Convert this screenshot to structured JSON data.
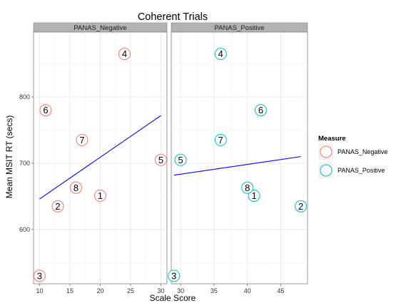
{
  "chart_data": {
    "type": "scatter",
    "title": "Coherent Trials",
    "xlabel": "Scale Score",
    "ylabel": "Mean MSIT RT (secs)",
    "ylim": [
      518,
      898
    ],
    "yticks": [
      600,
      700,
      800
    ],
    "legend": {
      "title": "Measure",
      "position": "right",
      "entries": [
        {
          "name": "PANAS_Negative",
          "color": "#F8766D"
        },
        {
          "name": "PANAS_Positive",
          "color": "#00BFC4"
        }
      ]
    },
    "regression_color": "#0000FF",
    "grid": true,
    "panels": [
      {
        "name": "PANAS_Negative",
        "color": "#F8766D",
        "xlim": [
          9.0,
          31.0
        ],
        "xticks": [
          10,
          15,
          20,
          25,
          30
        ],
        "points": [
          {
            "label": "1",
            "x": 20,
            "y": 651
          },
          {
            "label": "2",
            "x": 13,
            "y": 635
          },
          {
            "label": "3",
            "x": 10,
            "y": 530
          },
          {
            "label": "4",
            "x": 24,
            "y": 865
          },
          {
            "label": "5",
            "x": 30,
            "y": 705
          },
          {
            "label": "6",
            "x": 11,
            "y": 780
          },
          {
            "label": "7",
            "x": 17,
            "y": 735
          },
          {
            "label": "8",
            "x": 16,
            "y": 663
          }
        ],
        "fit": {
          "x": [
            10,
            30
          ],
          "y": [
            646,
            772
          ]
        }
      },
      {
        "name": "PANAS_Positive",
        "color": "#00BFC4",
        "xlim": [
          28.6,
          49.0
        ],
        "xticks": [
          30,
          35,
          40,
          45
        ],
        "points": [
          {
            "label": "1",
            "x": 41,
            "y": 651
          },
          {
            "label": "2",
            "x": 48,
            "y": 635
          },
          {
            "label": "3",
            "x": 29,
            "y": 530
          },
          {
            "label": "4",
            "x": 36,
            "y": 865
          },
          {
            "label": "5",
            "x": 30,
            "y": 705
          },
          {
            "label": "6",
            "x": 42,
            "y": 780
          },
          {
            "label": "7",
            "x": 36,
            "y": 735
          },
          {
            "label": "8",
            "x": 40,
            "y": 663
          }
        ],
        "fit": {
          "x": [
            29,
            48
          ],
          "y": [
            682,
            710
          ]
        }
      }
    ]
  }
}
